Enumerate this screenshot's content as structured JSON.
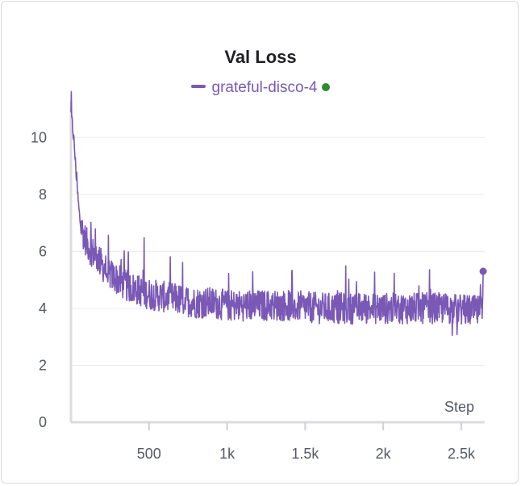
{
  "chart_data": {
    "type": "line",
    "title": "Val Loss",
    "xlabel": "Step",
    "ylabel": "",
    "xlim": [
      0,
      2650
    ],
    "ylim": [
      0,
      11
    ],
    "x_ticks": [
      {
        "value": 500,
        "label": "500"
      },
      {
        "value": 1000,
        "label": "1k"
      },
      {
        "value": 1500,
        "label": "1.5k"
      },
      {
        "value": 2000,
        "label": "2k"
      },
      {
        "value": 2500,
        "label": "2.5k"
      }
    ],
    "y_ticks": [
      {
        "value": 0,
        "label": "0"
      },
      {
        "value": 2,
        "label": "2"
      },
      {
        "value": 4,
        "label": "4"
      },
      {
        "value": 6,
        "label": "6"
      },
      {
        "value": 8,
        "label": "8"
      },
      {
        "value": 10,
        "label": "10"
      }
    ],
    "grid": true,
    "legend": "top-center",
    "series": [
      {
        "name": "grateful-disco-4",
        "color": "#7a59b6",
        "status_dot_color": "#2e8b2e",
        "last_point": [
          2640,
          5.3
        ],
        "x": [
          0,
          10,
          20,
          30,
          40,
          50,
          60,
          80,
          100,
          120,
          150,
          180,
          200,
          250,
          300,
          350,
          400,
          500,
          600,
          700,
          800,
          900,
          1000,
          1200,
          1400,
          1600,
          1800,
          2000,
          2200,
          2400,
          2600,
          2640
        ],
        "values": [
          10.8,
          10.4,
          9.8,
          9.0,
          8.2,
          7.5,
          7.0,
          6.6,
          6.3,
          6.1,
          5.9,
          5.7,
          5.5,
          5.2,
          5.0,
          4.8,
          4.7,
          4.5,
          4.4,
          4.3,
          4.2,
          4.2,
          4.1,
          4.1,
          4.1,
          4.0,
          4.0,
          4.0,
          4.0,
          4.0,
          3.9,
          5.3
        ]
      }
    ]
  }
}
